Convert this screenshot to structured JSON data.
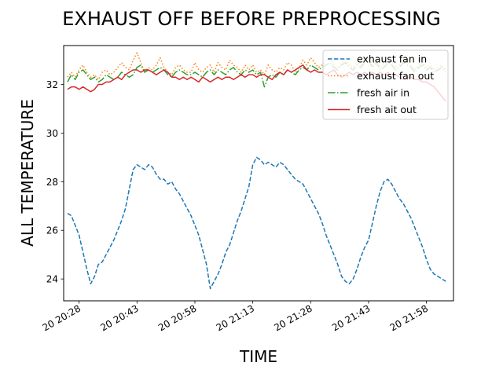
{
  "chart_data": {
    "type": "line",
    "title": "EXHAUST OFF BEFORE PREPROCESSING",
    "xlabel": "TIME",
    "ylabel": "ALL TEMPERATURE",
    "xlim": [
      "20 20:24",
      "20 22:05"
    ],
    "ylim": [
      23.1,
      33.6
    ],
    "x_tick_labels": [
      "20 20:28",
      "20 20:43",
      "20 20:58",
      "20 21:13",
      "20 21:28",
      "20 21:43",
      "20 21:58"
    ],
    "x_tick_times": [
      "20 20:28",
      "20 20:43",
      "20 20:58",
      "20 21:13",
      "20 21:28",
      "20 21:43",
      "20 21:58"
    ],
    "y_ticks": [
      24,
      26,
      28,
      30,
      32
    ],
    "grid": false,
    "legend_position": "top-right",
    "series": [
      {
        "name": "exhaust fan in",
        "color": "#1f77b4",
        "style": "dashed",
        "x": [
          "20 20:25",
          "20 20:26",
          "20 20:27",
          "20 20:28",
          "20 20:29",
          "20 20:30",
          "20 20:31",
          "20 20:32",
          "20 20:33",
          "20 20:34",
          "20 20:35",
          "20 20:36",
          "20 20:37",
          "20 20:38",
          "20 20:39",
          "20 20:40",
          "20 20:41",
          "20 20:42",
          "20 20:43",
          "20 20:44",
          "20 20:45",
          "20 20:46",
          "20 20:47",
          "20 20:48",
          "20 20:49",
          "20 20:50",
          "20 20:51",
          "20 20:52",
          "20 20:53",
          "20 20:54",
          "20 20:55",
          "20 20:56",
          "20 20:57",
          "20 20:58",
          "20 20:59",
          "20 21:00",
          "20 21:01",
          "20 21:02",
          "20 21:03",
          "20 21:04",
          "20 21:05",
          "20 21:06",
          "20 21:07",
          "20 21:08",
          "20 21:09",
          "20 21:10",
          "20 21:11",
          "20 21:12",
          "20 21:13",
          "20 21:14",
          "20 21:15",
          "20 21:16",
          "20 21:17",
          "20 21:18",
          "20 21:19",
          "20 21:20",
          "20 21:21",
          "20 21:22",
          "20 21:23",
          "20 21:24",
          "20 21:25",
          "20 21:26",
          "20 21:27",
          "20 21:28",
          "20 21:29",
          "20 21:30",
          "20 21:31",
          "20 21:32",
          "20 21:33",
          "20 21:34",
          "20 21:35",
          "20 21:36",
          "20 21:37",
          "20 21:38",
          "20 21:39",
          "20 21:40",
          "20 21:41",
          "20 21:42",
          "20 21:43",
          "20 21:44",
          "20 21:45",
          "20 21:46",
          "20 21:47",
          "20 21:48",
          "20 21:49",
          "20 21:50",
          "20 21:51",
          "20 21:52",
          "20 21:53",
          "20 21:54",
          "20 21:55",
          "20 21:56",
          "20 21:57",
          "20 21:58",
          "20 21:59",
          "20 22:00",
          "20 22:01",
          "20 22:02",
          "20 22:03"
        ],
        "y": [
          26.7,
          26.6,
          26.2,
          25.8,
          25.1,
          24.4,
          23.8,
          24.1,
          24.6,
          24.7,
          25.0,
          25.3,
          25.6,
          26.0,
          26.4,
          26.9,
          27.7,
          28.5,
          28.7,
          28.6,
          28.5,
          28.7,
          28.6,
          28.3,
          28.1,
          28.1,
          27.9,
          28.0,
          27.7,
          27.5,
          27.2,
          26.9,
          26.6,
          26.2,
          25.8,
          25.2,
          24.6,
          23.6,
          23.9,
          24.2,
          24.6,
          25.1,
          25.4,
          25.9,
          26.4,
          26.8,
          27.3,
          27.8,
          28.7,
          29.0,
          28.9,
          28.7,
          28.8,
          28.7,
          28.6,
          28.8,
          28.7,
          28.5,
          28.3,
          28.1,
          28.0,
          27.9,
          27.6,
          27.3,
          27.0,
          26.7,
          26.3,
          25.8,
          25.4,
          25.0,
          24.6,
          24.1,
          23.9,
          23.8,
          24.0,
          24.4,
          24.9,
          25.3,
          25.6,
          26.3,
          27.0,
          27.6,
          28.0,
          28.1,
          27.9,
          27.6,
          27.3,
          27.1,
          26.8,
          26.5,
          26.1,
          25.7,
          25.3,
          24.8,
          24.4,
          24.2,
          24.1,
          24.0,
          23.9
        ]
      },
      {
        "name": "exhaust fan out",
        "color": "#ff7f0e",
        "style": "dotted",
        "x": [
          "20 20:25",
          "20 20:26",
          "20 20:27",
          "20 20:28",
          "20 20:29",
          "20 20:30",
          "20 20:31",
          "20 20:32",
          "20 20:33",
          "20 20:34",
          "20 20:35",
          "20 20:36",
          "20 20:37",
          "20 20:38",
          "20 20:39",
          "20 20:40",
          "20 20:41",
          "20 20:42",
          "20 20:43",
          "20 20:44",
          "20 20:45",
          "20 20:46",
          "20 20:47",
          "20 20:48",
          "20 20:49",
          "20 20:50",
          "20 20:51",
          "20 20:52",
          "20 20:53",
          "20 20:54",
          "20 20:55",
          "20 20:56",
          "20 20:57",
          "20 20:58",
          "20 20:59",
          "20 21:00",
          "20 21:01",
          "20 21:02",
          "20 21:03",
          "20 21:04",
          "20 21:05",
          "20 21:06",
          "20 21:07",
          "20 21:08",
          "20 21:09",
          "20 21:10",
          "20 21:11",
          "20 21:12",
          "20 21:13",
          "20 21:14",
          "20 21:15",
          "20 21:16",
          "20 21:17",
          "20 21:18",
          "20 21:19",
          "20 21:20",
          "20 21:21",
          "20 21:22",
          "20 21:23",
          "20 21:24",
          "20 21:25",
          "20 21:26",
          "20 21:27",
          "20 21:28",
          "20 21:29",
          "20 21:30",
          "20 21:31",
          "20 21:32",
          "20 21:33",
          "20 21:34",
          "20 21:35",
          "20 21:36",
          "20 21:37",
          "20 21:38",
          "20 21:39",
          "20 21:40",
          "20 21:41",
          "20 21:42",
          "20 21:43",
          "20 21:44",
          "20 21:45",
          "20 21:46",
          "20 21:47",
          "20 21:48",
          "20 21:49",
          "20 21:50",
          "20 21:51",
          "20 21:52",
          "20 21:53",
          "20 21:54",
          "20 21:55",
          "20 21:56",
          "20 21:57",
          "20 21:58",
          "20 21:59",
          "20 22:00",
          "20 22:01",
          "20 22:02",
          "20 22:03"
        ],
        "y": [
          32.3,
          32.5,
          32.3,
          32.6,
          32.8,
          32.5,
          32.3,
          32.4,
          32.2,
          32.5,
          32.6,
          32.4,
          32.5,
          32.7,
          32.9,
          32.7,
          32.6,
          33.0,
          33.3,
          32.9,
          32.5,
          32.7,
          32.6,
          32.8,
          33.1,
          32.7,
          32.5,
          32.4,
          32.7,
          32.8,
          32.6,
          32.5,
          32.5,
          32.9,
          32.6,
          32.5,
          32.7,
          32.8,
          32.5,
          32.9,
          32.7,
          32.6,
          33.0,
          32.8,
          32.7,
          32.5,
          32.8,
          32.6,
          32.8,
          32.5,
          32.6,
          32.4,
          32.8,
          32.6,
          32.5,
          32.7,
          32.6,
          32.9,
          32.8,
          32.5,
          32.7,
          33.0,
          32.8,
          33.1,
          32.9,
          32.7,
          32.8,
          33.0,
          33.1,
          32.8,
          32.7,
          32.9,
          33.0,
          32.8,
          32.7,
          32.9,
          32.8,
          33.0,
          33.1,
          32.8,
          33.0,
          32.7,
          32.8,
          33.0,
          32.9,
          32.7,
          32.8,
          33.0,
          32.9,
          32.8,
          32.6,
          32.8,
          32.9,
          32.7,
          32.8,
          32.6,
          32.7,
          32.8,
          32.6
        ]
      },
      {
        "name": "fresh air in",
        "color": "#2ca02c",
        "style": "dashdot",
        "x": [
          "20 20:25",
          "20 20:26",
          "20 20:27",
          "20 20:28",
          "20 20:29",
          "20 20:30",
          "20 20:31",
          "20 20:32",
          "20 20:33",
          "20 20:34",
          "20 20:35",
          "20 20:36",
          "20 20:37",
          "20 20:38",
          "20 20:39",
          "20 20:40",
          "20 20:41",
          "20 20:42",
          "20 20:43",
          "20 20:44",
          "20 20:45",
          "20 20:46",
          "20 20:47",
          "20 20:48",
          "20 20:49",
          "20 20:50",
          "20 20:51",
          "20 20:52",
          "20 20:53",
          "20 20:54",
          "20 20:55",
          "20 20:56",
          "20 20:57",
          "20 20:58",
          "20 20:59",
          "20 21:00",
          "20 21:01",
          "20 21:02",
          "20 21:03",
          "20 21:04",
          "20 21:05",
          "20 21:06",
          "20 21:07",
          "20 21:08",
          "20 21:09",
          "20 21:10",
          "20 21:11",
          "20 21:12",
          "20 21:13",
          "20 21:14",
          "20 21:15",
          "20 21:16",
          "20 21:17",
          "20 21:18",
          "20 21:19",
          "20 21:20",
          "20 21:21",
          "20 21:22",
          "20 21:23",
          "20 21:24",
          "20 21:25",
          "20 21:26",
          "20 21:27",
          "20 21:28",
          "20 21:29",
          "20 21:30",
          "20 21:31",
          "20 21:32",
          "20 21:33",
          "20 21:34",
          "20 21:35",
          "20 21:36",
          "20 21:37",
          "20 21:38",
          "20 21:39",
          "20 21:40",
          "20 21:41",
          "20 21:42",
          "20 21:43",
          "20 21:44",
          "20 21:45",
          "20 21:46",
          "20 21:47",
          "20 21:48",
          "20 21:49",
          "20 21:50",
          "20 21:51",
          "20 21:52",
          "20 21:53",
          "20 21:54",
          "20 21:55",
          "20 21:56",
          "20 21:57",
          "20 21:58",
          "20 21:59",
          "20 22:00",
          "20 22:01",
          "20 22:02",
          "20 22:03"
        ],
        "y": [
          32.1,
          32.4,
          32.2,
          32.5,
          32.6,
          32.4,
          32.2,
          32.3,
          32.1,
          32.2,
          32.4,
          32.3,
          32.2,
          32.3,
          32.5,
          32.4,
          32.3,
          32.4,
          32.7,
          32.8,
          32.5,
          32.6,
          32.5,
          32.6,
          32.7,
          32.6,
          32.4,
          32.3,
          32.5,
          32.6,
          32.5,
          32.4,
          32.4,
          32.5,
          32.4,
          32.3,
          32.5,
          32.6,
          32.4,
          32.6,
          32.5,
          32.4,
          32.6,
          32.7,
          32.5,
          32.4,
          32.6,
          32.5,
          32.6,
          32.4,
          32.5,
          31.9,
          32.3,
          32.4,
          32.3,
          32.5,
          32.4,
          32.6,
          32.5,
          32.4,
          32.6,
          32.7,
          32.6,
          32.8,
          32.7,
          32.6,
          32.7,
          32.8,
          32.9,
          32.7,
          32.6,
          32.8,
          32.9,
          32.7,
          32.6,
          32.8,
          32.7,
          32.9,
          33.0,
          32.7,
          32.9,
          32.6,
          32.7,
          32.9,
          32.8,
          32.6,
          32.7,
          32.9,
          32.8,
          32.7,
          32.5,
          32.7,
          32.8,
          32.6,
          32.7,
          32.5,
          32.6,
          32.7,
          32.5
        ]
      },
      {
        "name": "fresh ait out",
        "color": "#d62728",
        "style": "solid",
        "x": [
          "20 20:25",
          "20 20:26",
          "20 20:27",
          "20 20:28",
          "20 20:29",
          "20 20:30",
          "20 20:31",
          "20 20:32",
          "20 20:33",
          "20 20:34",
          "20 20:35",
          "20 20:36",
          "20 20:37",
          "20 20:38",
          "20 20:39",
          "20 20:40",
          "20 20:41",
          "20 20:42",
          "20 20:43",
          "20 20:44",
          "20 20:45",
          "20 20:46",
          "20 20:47",
          "20 20:48",
          "20 20:49",
          "20 20:50",
          "20 20:51",
          "20 20:52",
          "20 20:53",
          "20 20:54",
          "20 20:55",
          "20 20:56",
          "20 20:57",
          "20 20:58",
          "20 20:59",
          "20 21:00",
          "20 21:01",
          "20 21:02",
          "20 21:03",
          "20 21:04",
          "20 21:05",
          "20 21:06",
          "20 21:07",
          "20 21:08",
          "20 21:09",
          "20 21:10",
          "20 21:11",
          "20 21:12",
          "20 21:13",
          "20 21:14",
          "20 21:15",
          "20 21:16",
          "20 21:17",
          "20 21:18",
          "20 21:19",
          "20 21:20",
          "20 21:21",
          "20 21:22",
          "20 21:23",
          "20 21:24",
          "20 21:25",
          "20 21:26",
          "20 21:27",
          "20 21:28",
          "20 21:29",
          "20 21:30",
          "20 21:31",
          "20 21:32",
          "20 21:33",
          "20 21:34",
          "20 21:35",
          "20 21:36",
          "20 21:37",
          "20 21:38",
          "20 21:39",
          "20 21:40",
          "20 21:41",
          "20 21:42",
          "20 21:43",
          "20 21:44",
          "20 21:45",
          "20 21:46",
          "20 21:47",
          "20 21:48",
          "20 21:49",
          "20 21:50",
          "20 21:51",
          "20 21:52",
          "20 21:53",
          "20 21:54",
          "20 21:55",
          "20 21:56",
          "20 21:57",
          "20 21:58",
          "20 21:59",
          "20 22:00",
          "20 22:01",
          "20 22:02",
          "20 22:03"
        ],
        "y": [
          31.8,
          31.9,
          31.9,
          31.8,
          31.9,
          31.8,
          31.7,
          31.8,
          32.0,
          32.0,
          32.1,
          32.1,
          32.2,
          32.3,
          32.2,
          32.4,
          32.5,
          32.6,
          32.6,
          32.5,
          32.6,
          32.6,
          32.5,
          32.4,
          32.5,
          32.6,
          32.5,
          32.3,
          32.3,
          32.2,
          32.3,
          32.2,
          32.3,
          32.2,
          32.1,
          32.3,
          32.2,
          32.1,
          32.2,
          32.3,
          32.2,
          32.3,
          32.3,
          32.2,
          32.3,
          32.4,
          32.3,
          32.4,
          32.4,
          32.3,
          32.4,
          32.4,
          32.3,
          32.2,
          32.4,
          32.5,
          32.4,
          32.6,
          32.5,
          32.6,
          32.7,
          32.8,
          32.6,
          32.5,
          32.6,
          32.5,
          32.5,
          32.4,
          32.5,
          32.6,
          32.4,
          32.3,
          32.4,
          32.5,
          32.4,
          32.5,
          32.4,
          32.5,
          32.4,
          32.5,
          32.4,
          32.5,
          32.4,
          32.5,
          32.3,
          32.4,
          32.3,
          32.2,
          32.3,
          32.3,
          32.2,
          32.2,
          32.1,
          32.1,
          32.0,
          31.9,
          31.7,
          31.5,
          31.3
        ]
      }
    ]
  }
}
